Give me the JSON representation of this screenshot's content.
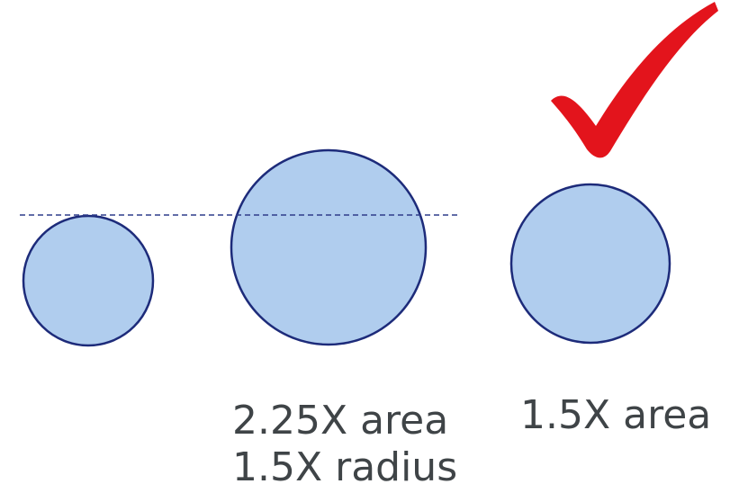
{
  "labels": {
    "large_circle_area": "2.25X area",
    "large_circle_radius": "1.5X radius",
    "right_circle_area": "1.5X area"
  },
  "colors": {
    "circle_fill": "#b0cdee",
    "circle_stroke": "#1d2b7a",
    "dashed_line": "#2f3d8a",
    "checkmark": "#e3141c",
    "label_text": "#3f4447"
  },
  "icons": {
    "check": "checkmark-icon"
  }
}
